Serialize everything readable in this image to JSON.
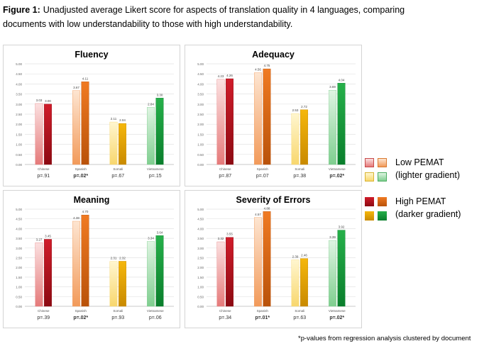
{
  "caption": {
    "label": "Figure 1:",
    "line1": "Unadjusted average Likert score for aspects of translation quality in 4 languages, comparing",
    "line2": "documents with low understandability to those with high understandability."
  },
  "colors": {
    "Chinese": {
      "low_top": "#fbe0e0",
      "low_bottom": "#e57a7a",
      "high_top": "#d01c2a",
      "high_bottom": "#8c0a12"
    },
    "Spanish": {
      "low_top": "#fde5d1",
      "low_bottom": "#f29a5a",
      "high_top": "#f07a22",
      "high_bottom": "#b9520a"
    },
    "Somali": {
      "low_top": "#fff6cf",
      "low_bottom": "#f8d76e",
      "high_top": "#f5b70c",
      "high_bottom": "#c98a00"
    },
    "Vietnamese": {
      "low_top": "#dff4e2",
      "low_bottom": "#7fce8f",
      "high_top": "#26b04a",
      "high_bottom": "#0a7e2c"
    }
  },
  "chart_data": [
    {
      "type": "bar",
      "title": "Fluency",
      "categories": [
        "Chinese",
        "Spanish",
        "Somali",
        "Vietnamese"
      ],
      "ylim": [
        0,
        5
      ],
      "yticks": [
        "0.00",
        "0.50",
        "1.00",
        "1.50",
        "2.00",
        "2.50",
        "3.00",
        "3.50",
        "4.00",
        "4.50",
        "5.00"
      ],
      "series": [
        {
          "name": "Low PEMAT",
          "values": [
            3.03,
            3.67,
            2.11,
            2.84
          ],
          "labels": [
            "3.03",
            "3.67",
            "2.11",
            "2.84"
          ]
        },
        {
          "name": "High PEMAT",
          "values": [
            3.0,
            4.11,
            2.04,
            3.3
          ],
          "labels": [
            "3.00",
            "4.11",
            "2.04",
            "3.30"
          ]
        }
      ],
      "pvalues": [
        "p=.91",
        "p=.02*",
        "p=.67",
        "p=.15"
      ],
      "significant": [
        false,
        true,
        false,
        false
      ]
    },
    {
      "type": "bar",
      "title": "Adequacy",
      "categories": [
        "Chinese",
        "Spanish",
        "Somali",
        "Vietnamese"
      ],
      "ylim": [
        0,
        5
      ],
      "yticks": [
        "0.00",
        "0.50",
        "1.00",
        "1.50",
        "2.00",
        "2.50",
        "3.00",
        "3.50",
        "4.00",
        "4.50",
        "5.00"
      ],
      "series": [
        {
          "name": "Low PEMAT",
          "values": [
            4.23,
            4.56,
            2.53,
            3.69
          ],
          "labels": [
            "4.23",
            "4.56",
            "2.53",
            "3.69"
          ]
        },
        {
          "name": "High PEMAT",
          "values": [
            4.26,
            4.75,
            2.72,
            4.04
          ],
          "labels": [
            "4.26",
            "4.75",
            "2.72",
            "4.04"
          ]
        }
      ],
      "pvalues": [
        "p=.87",
        "p=.07",
        "p=.38",
        "p=.02*"
      ],
      "significant": [
        false,
        false,
        false,
        true
      ]
    },
    {
      "type": "bar",
      "title": "Meaning",
      "categories": [
        "Chinese",
        "Spanish",
        "Somali",
        "Vietnamese"
      ],
      "ylim": [
        0,
        5
      ],
      "yticks": [
        "0.00",
        "0.50",
        "1.00",
        "1.50",
        "2.00",
        "2.50",
        "3.00",
        "3.50",
        "4.00",
        "4.50",
        "5.00"
      ],
      "series": [
        {
          "name": "Low PEMAT",
          "values": [
            3.27,
            4.38,
            2.31,
            3.34
          ],
          "labels": [
            "3.27",
            "4.38",
            "2.31",
            "3.34"
          ]
        },
        {
          "name": "High PEMAT",
          "values": [
            3.45,
            4.7,
            2.32,
            3.64
          ],
          "labels": [
            "3.45",
            "4.70",
            "2.32",
            "3.64"
          ]
        }
      ],
      "pvalues": [
        "p=.39",
        "p=.02*",
        "p=.93",
        "p=.06"
      ],
      "significant": [
        false,
        true,
        false,
        false
      ]
    },
    {
      "type": "bar",
      "title": "Severity of Errors",
      "categories": [
        "Chinese",
        "Spanish",
        "Somali",
        "Vietnamese"
      ],
      "ylim": [
        0,
        5
      ],
      "yticks": [
        "0.00",
        "0.50",
        "1.00",
        "1.50",
        "2.00",
        "2.50",
        "3.00",
        "3.50",
        "4.00",
        "4.50",
        "5.00"
      ],
      "series": [
        {
          "name": "Low PEMAT",
          "values": [
            3.32,
            4.57,
            2.39,
            3.39
          ],
          "labels": [
            "3.32",
            "4.57",
            "2.39",
            "3.39"
          ]
        },
        {
          "name": "High PEMAT",
          "values": [
            3.55,
            4.88,
            2.46,
            3.92
          ],
          "labels": [
            "3.55",
            "4.88",
            "2.46",
            "3.92"
          ]
        }
      ],
      "pvalues": [
        "p=.34",
        "p=.01*",
        "p=.63",
        "p=.02*"
      ],
      "significant": [
        false,
        true,
        false,
        true
      ]
    }
  ],
  "legend": {
    "low_label": "Low PEMAT",
    "low_sub": "(lighter gradient)",
    "high_label": "High PEMAT",
    "high_sub": "(darker gradient)"
  },
  "footnote": "*p-values from regression analysis clustered by document"
}
